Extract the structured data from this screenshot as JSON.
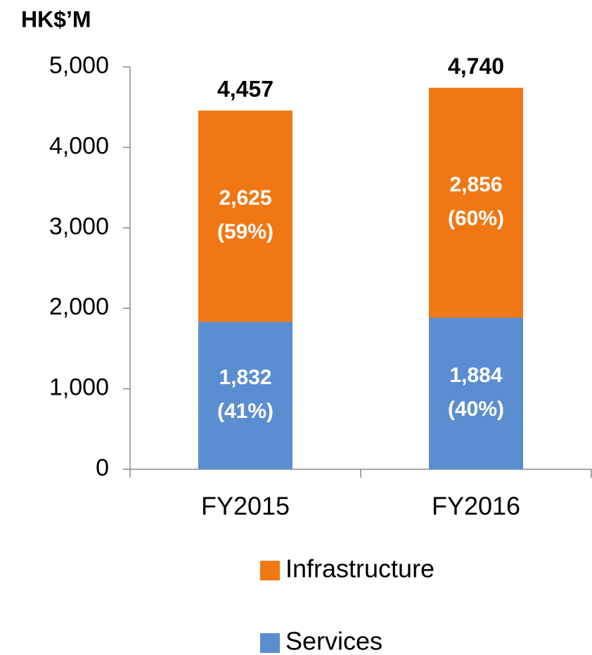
{
  "chart_data": {
    "type": "stacked_bar",
    "axis_label": "HK$’M",
    "categories": [
      "FY2015",
      "FY2016"
    ],
    "series": [
      {
        "name": "Services",
        "color": "#5b8ed0",
        "values": [
          1832,
          1884
        ],
        "value_labels": [
          "1,832",
          "1,884"
        ],
        "share_labels": [
          "(41%)",
          "(40%)"
        ]
      },
      {
        "name": "Infrastructure",
        "color": "#f07814",
        "values": [
          2625,
          2856
        ],
        "value_labels": [
          "2,625",
          "2,856"
        ],
        "share_labels": [
          "(59%)",
          "(60%)"
        ]
      }
    ],
    "totals": [
      4457,
      4740
    ],
    "total_labels": [
      "4,457",
      "4,740"
    ],
    "ylim": [
      0,
      5000
    ],
    "yticks": [
      0,
      {
        "value": 1000,
        "label": "1,000"
      },
      {
        "value": 2000,
        "label": "2,000"
      },
      {
        "value": 3000,
        "label": "3,000"
      },
      {
        "value": 4000,
        "label": "4,000"
      },
      {
        "value": 5000,
        "label": "5,000"
      }
    ],
    "grid": false,
    "legend": "bottom"
  }
}
